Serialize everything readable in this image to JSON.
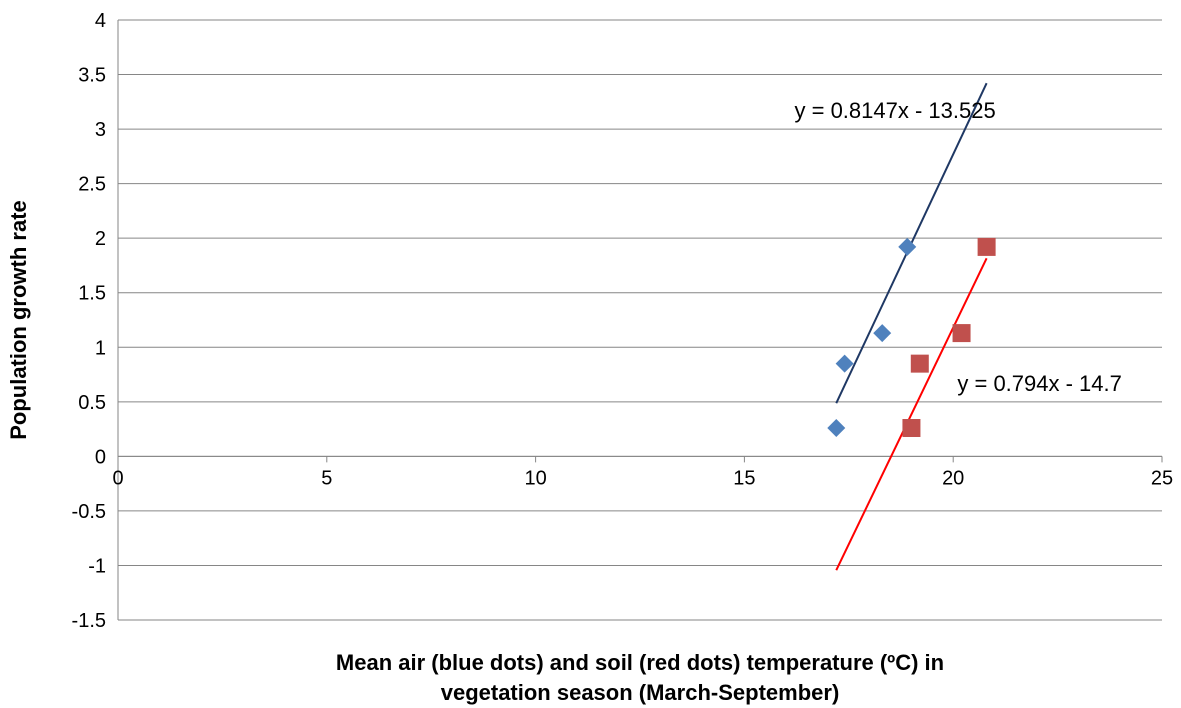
{
  "chart_data": {
    "type": "scatter",
    "title": "",
    "xlabel_lines": [
      "Mean air (blue dots) and soil (red dots) temperature (ºC) in",
      "vegetation season (March-September)"
    ],
    "ylabel": "Population growth rate",
    "xlim": [
      0,
      25
    ],
    "ylim": [
      -1.5,
      4
    ],
    "x_ticks": [
      0,
      5,
      10,
      15,
      20,
      25
    ],
    "y_ticks": [
      -1.5,
      -1,
      -0.5,
      0,
      0.5,
      1,
      1.5,
      2,
      2.5,
      3,
      3.5,
      4
    ],
    "grid": true,
    "legend": "none",
    "series": [
      {
        "marker": "diamond",
        "color": "#4F81BD",
        "points": [
          [
            17.2,
            0.26
          ],
          [
            17.4,
            0.85
          ],
          [
            18.3,
            1.13
          ],
          [
            18.9,
            1.92
          ]
        ],
        "trendline": {
          "color": "#1F3864",
          "slope": 0.8147,
          "intercept": -13.525,
          "x_range": [
            17.2,
            20.8
          ],
          "equation": "y = 0.8147x - 13.525",
          "label_anchor": [
            16.2,
            3.1
          ]
        }
      },
      {
        "marker": "square",
        "color": "#C0504D",
        "points": [
          [
            19.0,
            0.26
          ],
          [
            19.2,
            0.85
          ],
          [
            20.2,
            1.13
          ],
          [
            20.8,
            1.92
          ]
        ],
        "trendline": {
          "color": "#FF0000",
          "slope": 0.794,
          "intercept": -14.7,
          "x_range": [
            17.2,
            20.8
          ],
          "equation": "y = 0.794x - 14.7",
          "label_anchor": [
            20.1,
            0.6
          ]
        }
      }
    ]
  }
}
